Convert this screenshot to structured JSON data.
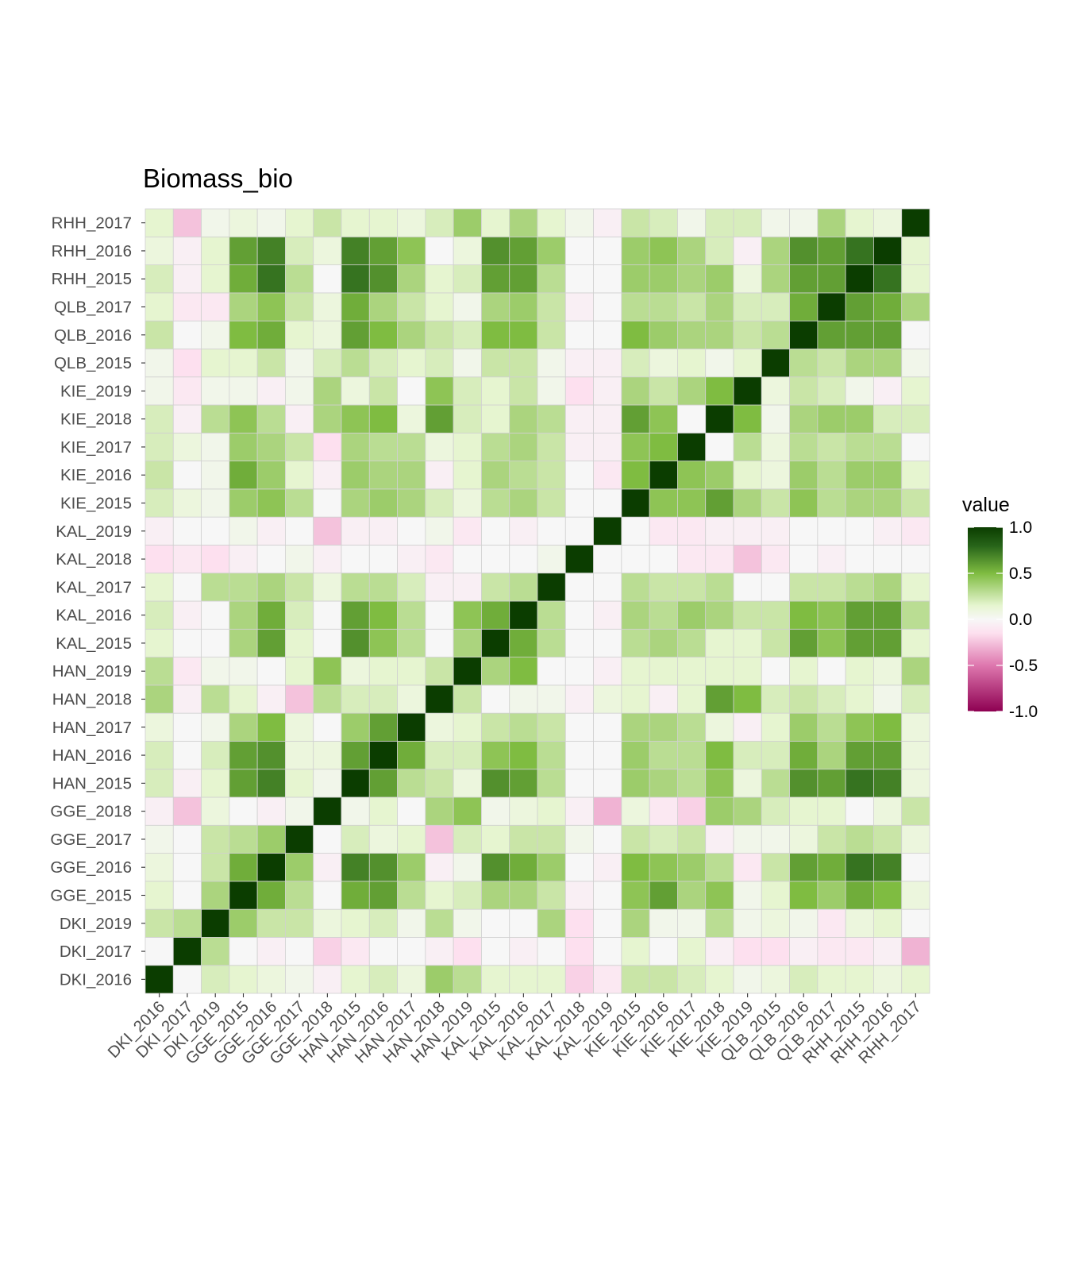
{
  "chart_data": {
    "type": "heatmap",
    "title": "Biomass_bio",
    "xlabel": "",
    "ylabel": "",
    "labels": [
      "DKI_2016",
      "DKI_2017",
      "DKI_2019",
      "GGE_2015",
      "GGE_2016",
      "GGE_2017",
      "GGE_2018",
      "HAN_2015",
      "HAN_2016",
      "HAN_2017",
      "HAN_2018",
      "HAN_2019",
      "KAL_2015",
      "KAL_2016",
      "KAL_2017",
      "KAL_2018",
      "KAL_2019",
      "KIE_2015",
      "KIE_2016",
      "KIE_2017",
      "KIE_2018",
      "KIE_2019",
      "QLB_2015",
      "QLB_2016",
      "QLB_2017",
      "RHH_2015",
      "RHH_2016",
      "RHH_2017"
    ],
    "values": [
      [
        1.0,
        0.0,
        0.2,
        0.15,
        0.1,
        0.05,
        -0.05,
        0.15,
        0.2,
        0.1,
        0.4,
        0.3,
        0.15,
        0.15,
        0.15,
        -0.2,
        -0.1,
        0.25,
        0.25,
        0.2,
        0.15,
        0.05,
        0.1,
        0.2,
        0.15,
        0.15,
        0.1,
        0.15
      ],
      [
        0.0,
        1.0,
        0.3,
        0.0,
        -0.05,
        0.0,
        -0.2,
        -0.1,
        0.0,
        0.0,
        -0.05,
        -0.15,
        0.0,
        -0.05,
        0.0,
        -0.15,
        0.0,
        0.15,
        0.0,
        0.15,
        -0.05,
        -0.15,
        -0.15,
        -0.05,
        -0.1,
        -0.1,
        -0.05,
        -0.3
      ],
      [
        0.25,
        0.3,
        1.0,
        0.4,
        0.25,
        0.25,
        0.1,
        0.15,
        0.2,
        0.05,
        0.3,
        0.05,
        0.0,
        0.0,
        0.35,
        -0.15,
        0.0,
        0.35,
        0.05,
        0.05,
        0.3,
        0.05,
        0.1,
        0.05,
        -0.1,
        0.1,
        0.15,
        0.0
      ],
      [
        0.15,
        0.0,
        0.35,
        1.0,
        0.55,
        0.3,
        0.0,
        0.55,
        0.6,
        0.3,
        0.15,
        0.2,
        0.35,
        0.35,
        0.25,
        -0.05,
        0.0,
        0.45,
        0.6,
        0.35,
        0.45,
        0.05,
        0.15,
        0.5,
        0.4,
        0.55,
        0.5,
        0.1
      ],
      [
        0.1,
        0.0,
        0.25,
        0.55,
        1.0,
        0.4,
        -0.05,
        0.7,
        0.65,
        0.4,
        -0.05,
        0.05,
        0.65,
        0.55,
        0.4,
        0.0,
        -0.05,
        0.5,
        0.45,
        0.4,
        0.3,
        -0.1,
        0.25,
        0.6,
        0.55,
        0.75,
        0.7,
        0.0
      ],
      [
        0.05,
        0.0,
        0.25,
        0.3,
        0.4,
        1.0,
        0.0,
        0.2,
        0.1,
        0.15,
        -0.25,
        0.2,
        0.15,
        0.25,
        0.25,
        0.05,
        0.0,
        0.25,
        0.2,
        0.25,
        -0.05,
        0.05,
        0.05,
        0.1,
        0.25,
        0.3,
        0.25,
        0.1
      ],
      [
        -0.05,
        -0.25,
        0.1,
        0.0,
        -0.05,
        0.05,
        1.0,
        0.05,
        0.15,
        0.0,
        0.35,
        0.45,
        0.05,
        0.1,
        0.15,
        -0.05,
        -0.3,
        0.1,
        -0.1,
        -0.2,
        0.4,
        0.35,
        0.2,
        0.15,
        0.15,
        0.0,
        0.1,
        0.25
      ],
      [
        0.2,
        -0.05,
        0.15,
        0.6,
        0.7,
        0.15,
        0.05,
        1.0,
        0.6,
        0.3,
        0.25,
        0.1,
        0.65,
        0.6,
        0.3,
        0.0,
        0.0,
        0.4,
        0.35,
        0.3,
        0.45,
        0.1,
        0.3,
        0.65,
        0.6,
        0.75,
        0.7,
        0.1
      ],
      [
        0.2,
        0.0,
        0.2,
        0.6,
        0.65,
        0.1,
        0.1,
        0.6,
        1.0,
        0.55,
        0.2,
        0.2,
        0.45,
        0.5,
        0.3,
        0.0,
        0.0,
        0.4,
        0.3,
        0.3,
        0.5,
        0.2,
        0.2,
        0.55,
        0.35,
        0.6,
        0.6,
        0.1
      ],
      [
        0.1,
        0.0,
        0.05,
        0.35,
        0.5,
        0.1,
        0.0,
        0.4,
        0.6,
        1.0,
        0.1,
        0.15,
        0.25,
        0.3,
        0.25,
        0.0,
        0.0,
        0.35,
        0.35,
        0.3,
        0.1,
        -0.05,
        0.15,
        0.4,
        0.3,
        0.45,
        0.5,
        0.1
      ],
      [
        0.35,
        -0.05,
        0.3,
        0.15,
        -0.05,
        -0.25,
        0.3,
        0.2,
        0.2,
        0.1,
        1.0,
        0.25,
        0.0,
        0.05,
        0.05,
        -0.05,
        0.1,
        0.15,
        -0.05,
        0.15,
        0.6,
        0.5,
        0.2,
        0.25,
        0.2,
        0.15,
        0.05,
        0.2
      ],
      [
        0.3,
        -0.1,
        0.05,
        0.05,
        0.0,
        0.15,
        0.45,
        0.1,
        0.15,
        0.15,
        0.25,
        1.0,
        0.35,
        0.5,
        0.0,
        0.0,
        -0.05,
        0.15,
        0.15,
        0.15,
        0.15,
        0.15,
        0.0,
        0.15,
        0.0,
        0.15,
        0.1,
        0.35
      ],
      [
        0.15,
        0.0,
        0.0,
        0.35,
        0.6,
        0.15,
        0.0,
        0.65,
        0.45,
        0.3,
        0.0,
        0.35,
        1.0,
        0.55,
        0.3,
        0.0,
        0.0,
        0.3,
        0.35,
        0.3,
        0.15,
        0.15,
        0.25,
        0.6,
        0.45,
        0.6,
        0.6,
        0.15
      ],
      [
        0.2,
        -0.05,
        0.0,
        0.35,
        0.55,
        0.2,
        0.0,
        0.6,
        0.5,
        0.3,
        0.0,
        0.45,
        0.55,
        1.0,
        0.3,
        0.0,
        -0.05,
        0.35,
        0.3,
        0.4,
        0.35,
        0.25,
        0.25,
        0.5,
        0.45,
        0.6,
        0.6,
        0.3
      ],
      [
        0.15,
        0.0,
        0.3,
        0.3,
        0.35,
        0.25,
        0.1,
        0.3,
        0.3,
        0.2,
        -0.05,
        -0.05,
        0.25,
        0.3,
        1.0,
        0.0,
        0.0,
        0.3,
        0.25,
        0.25,
        0.3,
        0.0,
        0.0,
        0.25,
        0.25,
        0.3,
        0.35,
        0.15
      ],
      [
        -0.15,
        -0.1,
        -0.15,
        -0.05,
        0.0,
        0.05,
        -0.05,
        0.0,
        0.0,
        -0.05,
        -0.1,
        0.0,
        0.0,
        0.0,
        0.05,
        1.0,
        0.0,
        0.0,
        0.0,
        -0.1,
        -0.1,
        -0.25,
        -0.1,
        0.0,
        -0.05,
        0.0,
        0.0,
        0.0
      ],
      [
        -0.05,
        0.0,
        0.0,
        0.05,
        -0.05,
        0.0,
        -0.25,
        -0.05,
        -0.05,
        0.0,
        0.05,
        -0.1,
        0.0,
        -0.05,
        0.0,
        0.0,
        1.0,
        0.0,
        -0.1,
        -0.1,
        -0.05,
        -0.05,
        -0.05,
        0.0,
        0.0,
        0.0,
        -0.05,
        -0.1
      ],
      [
        0.2,
        0.1,
        0.05,
        0.4,
        0.45,
        0.3,
        0.0,
        0.35,
        0.4,
        0.35,
        0.2,
        0.1,
        0.3,
        0.35,
        0.25,
        0.0,
        0.0,
        1.0,
        0.45,
        0.45,
        0.6,
        0.35,
        0.25,
        0.45,
        0.3,
        0.35,
        0.35,
        0.25
      ],
      [
        0.25,
        0.0,
        0.05,
        0.55,
        0.4,
        0.15,
        -0.05,
        0.4,
        0.35,
        0.35,
        -0.05,
        0.15,
        0.35,
        0.3,
        0.25,
        0.0,
        -0.1,
        0.5,
        1.0,
        0.45,
        0.4,
        0.15,
        0.1,
        0.4,
        0.3,
        0.4,
        0.4,
        0.15
      ],
      [
        0.2,
        0.1,
        0.05,
        0.4,
        0.35,
        0.25,
        -0.15,
        0.35,
        0.3,
        0.3,
        0.1,
        0.15,
        0.3,
        0.35,
        0.25,
        -0.05,
        -0.05,
        0.45,
        0.5,
        1.0,
        0.0,
        0.3,
        0.1,
        0.3,
        0.25,
        0.3,
        0.3,
        0.0
      ],
      [
        0.2,
        -0.05,
        0.3,
        0.45,
        0.3,
        -0.05,
        0.35,
        0.45,
        0.5,
        0.1,
        0.6,
        0.2,
        0.15,
        0.35,
        0.3,
        -0.05,
        -0.05,
        0.6,
        0.45,
        0.0,
        1.0,
        0.5,
        0.05,
        0.35,
        0.4,
        0.4,
        0.2,
        0.2
      ],
      [
        0.05,
        -0.1,
        0.05,
        0.05,
        -0.05,
        0.05,
        0.35,
        0.1,
        0.25,
        0.0,
        0.45,
        0.2,
        0.15,
        0.25,
        0.05,
        -0.15,
        -0.05,
        0.35,
        0.25,
        0.35,
        0.5,
        1.0,
        0.1,
        0.25,
        0.2,
        0.05,
        -0.05,
        0.15
      ],
      [
        0.05,
        -0.15,
        0.15,
        0.15,
        0.25,
        0.05,
        0.2,
        0.3,
        0.2,
        0.15,
        0.2,
        0.05,
        0.25,
        0.25,
        0.05,
        -0.05,
        -0.05,
        0.2,
        0.1,
        0.15,
        0.05,
        0.15,
        1.0,
        0.3,
        0.25,
        0.35,
        0.35,
        0.05
      ],
      [
        0.25,
        0.0,
        0.05,
        0.5,
        0.55,
        0.15,
        0.1,
        0.6,
        0.5,
        0.35,
        0.25,
        0.2,
        0.5,
        0.5,
        0.25,
        0.0,
        0.0,
        0.5,
        0.4,
        0.35,
        0.35,
        0.25,
        0.3,
        1.0,
        0.6,
        0.6,
        0.6,
        0.0
      ],
      [
        0.15,
        -0.1,
        -0.1,
        0.35,
        0.45,
        0.25,
        0.1,
        0.55,
        0.35,
        0.25,
        0.15,
        0.05,
        0.35,
        0.4,
        0.25,
        -0.05,
        0.0,
        0.3,
        0.3,
        0.25,
        0.35,
        0.2,
        0.2,
        0.55,
        1.0,
        0.6,
        0.55,
        0.35
      ],
      [
        0.2,
        -0.05,
        0.15,
        0.55,
        0.75,
        0.3,
        0.0,
        0.75,
        0.65,
        0.35,
        0.15,
        0.2,
        0.6,
        0.6,
        0.3,
        0.0,
        0.0,
        0.4,
        0.4,
        0.35,
        0.4,
        0.1,
        0.35,
        0.6,
        0.6,
        1.0,
        0.75,
        0.15
      ],
      [
        0.1,
        -0.05,
        0.15,
        0.6,
        0.7,
        0.2,
        0.1,
        0.7,
        0.6,
        0.45,
        0.0,
        0.1,
        0.65,
        0.6,
        0.4,
        0.0,
        0.0,
        0.4,
        0.45,
        0.35,
        0.2,
        -0.05,
        0.35,
        0.65,
        0.6,
        0.75,
        1.0,
        0.15
      ],
      [
        0.15,
        -0.25,
        0.05,
        0.1,
        0.05,
        0.15,
        0.25,
        0.15,
        0.15,
        0.1,
        0.2,
        0.4,
        0.15,
        0.35,
        0.15,
        0.05,
        -0.05,
        0.25,
        0.2,
        0.05,
        0.2,
        0.2,
        0.05,
        0.05,
        0.35,
        0.15,
        0.1,
        1.0
      ]
    ],
    "legend": {
      "title": "value",
      "ticks": [
        "1.0",
        "0.5",
        "0.0",
        "-0.5",
        "-1.0"
      ],
      "tick_values": [
        1.0,
        0.5,
        0.0,
        -0.5,
        -1.0
      ],
      "range": [
        -1,
        1
      ],
      "placement": "right"
    },
    "colors": {
      "low": "#8e0152",
      "mid_low": "#de77ae",
      "mid_low_light": "#fde0ef",
      "mid": "#f7f7f7",
      "mid_high_light": "#e6f5d0",
      "mid_high": "#7fbc41",
      "high": "#276419",
      "top": "#0b3d00"
    },
    "grid": true
  }
}
